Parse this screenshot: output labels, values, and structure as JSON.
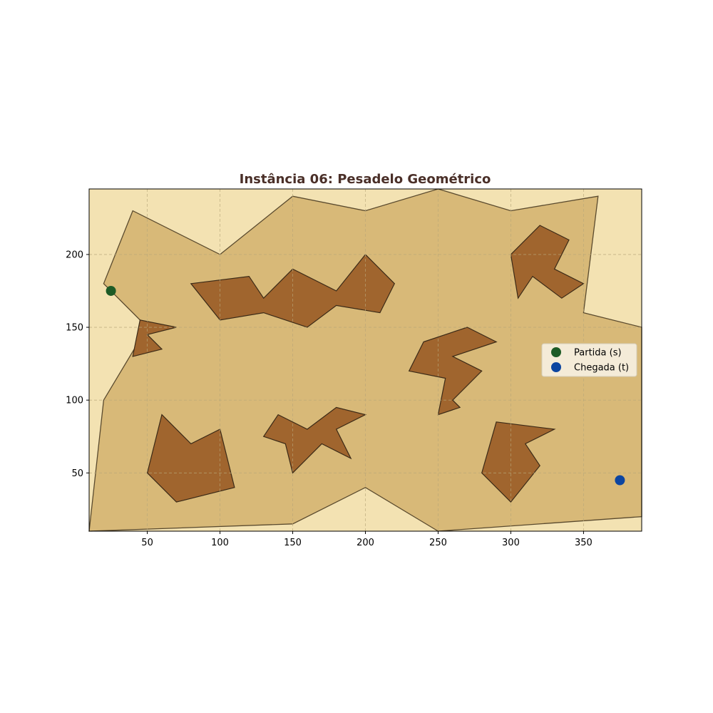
{
  "chart_data": {
    "type": "scatter",
    "title": "Instância 06: Pesadelo Geométrico",
    "xlabel": "",
    "ylabel": "",
    "xlim": [
      10,
      390
    ],
    "ylim": [
      10,
      245
    ],
    "xticks": [
      50,
      100,
      150,
      200,
      250,
      300,
      350
    ],
    "yticks": [
      50,
      100,
      150,
      200
    ],
    "grid": true,
    "legend_position": "center-right",
    "colors": {
      "background": "#f3e2b2",
      "region_fill": "#d8b978",
      "region_edge": "#5a4a2e",
      "obstacle_fill": "#a0652e",
      "obstacle_edge": "#3b2a17",
      "start": "#1d5b26",
      "goal": "#0c45a0",
      "title": "#4a2f28",
      "grid": "#b8a77a"
    },
    "free_region": [
      [
        10,
        10
      ],
      [
        150,
        15
      ],
      [
        200,
        40
      ],
      [
        250,
        10
      ],
      [
        390,
        20
      ],
      [
        390,
        150
      ],
      [
        350,
        160
      ],
      [
        360,
        240
      ],
      [
        300,
        230
      ],
      [
        250,
        245
      ],
      [
        200,
        230
      ],
      [
        150,
        240
      ],
      [
        100,
        200
      ],
      [
        40,
        230
      ],
      [
        20,
        180
      ],
      [
        50,
        150
      ],
      [
        20,
        100
      ],
      [
        10,
        10
      ]
    ],
    "obstacles": [
      [
        [
          80,
          180
        ],
        [
          120,
          185
        ],
        [
          130,
          170
        ],
        [
          150,
          190
        ],
        [
          180,
          175
        ],
        [
          200,
          200
        ],
        [
          220,
          180
        ],
        [
          210,
          160
        ],
        [
          180,
          165
        ],
        [
          160,
          150
        ],
        [
          130,
          160
        ],
        [
          100,
          155
        ]
      ],
      [
        [
          300,
          200
        ],
        [
          320,
          220
        ],
        [
          340,
          210
        ],
        [
          330,
          190
        ],
        [
          350,
          180
        ],
        [
          335,
          170
        ],
        [
          315,
          185
        ],
        [
          305,
          170
        ]
      ],
      [
        [
          45,
          155
        ],
        [
          70,
          150
        ],
        [
          50,
          145
        ],
        [
          60,
          135
        ],
        [
          40,
          130
        ]
      ],
      [
        [
          240,
          140
        ],
        [
          270,
          150
        ],
        [
          290,
          140
        ],
        [
          260,
          130
        ],
        [
          280,
          120
        ],
        [
          260,
          100
        ],
        [
          265,
          95
        ],
        [
          250,
          90
        ],
        [
          255,
          115
        ],
        [
          230,
          120
        ]
      ],
      [
        [
          60,
          90
        ],
        [
          80,
          70
        ],
        [
          100,
          80
        ],
        [
          110,
          40
        ],
        [
          70,
          30
        ],
        [
          50,
          50
        ]
      ],
      [
        [
          130,
          75
        ],
        [
          140,
          90
        ],
        [
          160,
          80
        ],
        [
          180,
          95
        ],
        [
          200,
          90
        ],
        [
          180,
          80
        ],
        [
          190,
          60
        ],
        [
          170,
          70
        ],
        [
          150,
          50
        ],
        [
          145,
          70
        ]
      ],
      [
        [
          290,
          85
        ],
        [
          330,
          80
        ],
        [
          310,
          70
        ],
        [
          320,
          55
        ],
        [
          300,
          30
        ],
        [
          280,
          50
        ]
      ]
    ],
    "series": [
      {
        "name": "Partida (s)",
        "x": [
          25
        ],
        "y": [
          175
        ]
      },
      {
        "name": "Chegada (t)",
        "x": [
          375
        ],
        "y": [
          45
        ]
      }
    ]
  }
}
